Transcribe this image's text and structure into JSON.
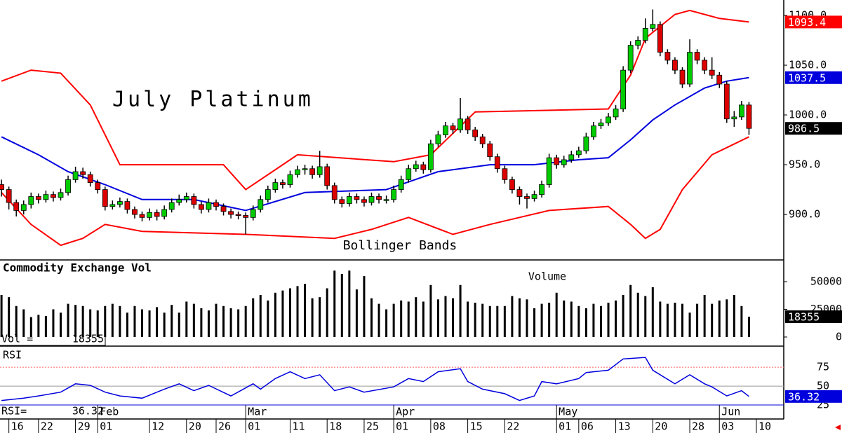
{
  "chart_data": {
    "type": "candlestick",
    "title": "July Platinum",
    "subtitle": "Bollinger Bands",
    "volume_title": "Commodity Exchange Vol",
    "volume_legend": "Volume",
    "volume_label": "Vol =",
    "rsi_title": "RSI",
    "rsi_label": "RSI=",
    "up_color": "#00cc00",
    "down_color": "#dd0000",
    "xlim": [
      -0.2,
      105.7
    ],
    "xticks": [
      {
        "value": 1,
        "label": "16"
      },
      {
        "value": 5,
        "label": "22"
      },
      {
        "value": 10,
        "label": "29"
      },
      {
        "value": 13,
        "label": "01"
      },
      {
        "value": 20,
        "label": "12"
      },
      {
        "value": 25,
        "label": "20"
      },
      {
        "value": 29,
        "label": "26"
      },
      {
        "value": 33,
        "label": "01"
      },
      {
        "value": 39,
        "label": "11"
      },
      {
        "value": 44,
        "label": "18"
      },
      {
        "value": 49,
        "label": "25"
      },
      {
        "value": 53,
        "label": "01"
      },
      {
        "value": 58,
        "label": "08"
      },
      {
        "value": 63,
        "label": "15"
      },
      {
        "value": 68,
        "label": "22"
      },
      {
        "value": 75,
        "label": "01"
      },
      {
        "value": 78,
        "label": "06"
      },
      {
        "value": 83,
        "label": "13"
      },
      {
        "value": 88,
        "label": "20"
      },
      {
        "value": 93,
        "label": "28"
      },
      {
        "value": 97,
        "label": "03"
      },
      {
        "value": 102,
        "label": "10"
      }
    ],
    "month_ticks": [
      {
        "value": 13,
        "label": "Feb"
      },
      {
        "value": 33,
        "label": "Mar"
      },
      {
        "value": 53,
        "label": "Apr"
      },
      {
        "value": 75,
        "label": "May"
      },
      {
        "value": 97,
        "label": "Jun"
      }
    ],
    "ylim": [
      855,
      1115.5
    ],
    "yticks": [
      {
        "value": 900,
        "label": "900.0"
      },
      {
        "value": 950,
        "label": "950.0"
      },
      {
        "value": 1000,
        "label": "1000.0"
      },
      {
        "value": 1050,
        "label": "1050.0"
      },
      {
        "value": 1100,
        "label": "1100.0"
      }
    ],
    "ohlc": [
      [
        930,
        935,
        918,
        925
      ],
      [
        925,
        928,
        905,
        912
      ],
      [
        912,
        915,
        898,
        904
      ],
      [
        904,
        914,
        900,
        910
      ],
      [
        910,
        922,
        906,
        918
      ],
      [
        918,
        921,
        911,
        915
      ],
      [
        915,
        924,
        912,
        920
      ],
      [
        920,
        923,
        913,
        917
      ],
      [
        917,
        926,
        914,
        922
      ],
      [
        922,
        939,
        919,
        935
      ],
      [
        935,
        948,
        932,
        943
      ],
      [
        943,
        947,
        936,
        940
      ],
      [
        940,
        943,
        928,
        932
      ],
      [
        932,
        935,
        921,
        925
      ],
      [
        925,
        928,
        904,
        908
      ],
      [
        908,
        914,
        905,
        910
      ],
      [
        910,
        917,
        907,
        913
      ],
      [
        913,
        916,
        901,
        905
      ],
      [
        905,
        908,
        896,
        900
      ],
      [
        900,
        903,
        893,
        897
      ],
      [
        897,
        906,
        894,
        902
      ],
      [
        902,
        905,
        894,
        898
      ],
      [
        898,
        909,
        895,
        905
      ],
      [
        905,
        916,
        902,
        912
      ],
      [
        912,
        920,
        909,
        915
      ],
      [
        915,
        922,
        912,
        918
      ],
      [
        918,
        921,
        906,
        910
      ],
      [
        910,
        913,
        901,
        905
      ],
      [
        905,
        916,
        902,
        912
      ],
      [
        912,
        915,
        904,
        908
      ],
      [
        908,
        911,
        899,
        903
      ],
      [
        903,
        906,
        896,
        900
      ],
      [
        900,
        903,
        895,
        899
      ],
      [
        899,
        902,
        880,
        897
      ],
      [
        897,
        909,
        894,
        905
      ],
      [
        905,
        919,
        902,
        915
      ],
      [
        915,
        929,
        912,
        925
      ],
      [
        925,
        936,
        922,
        932
      ],
      [
        932,
        935,
        926,
        930
      ],
      [
        930,
        944,
        927,
        940
      ],
      [
        940,
        949,
        937,
        945
      ],
      [
        945,
        950,
        940,
        946
      ],
      [
        946,
        949,
        936,
        940
      ],
      [
        940,
        964,
        937,
        948
      ],
      [
        948,
        951,
        925,
        929
      ],
      [
        929,
        932,
        911,
        915
      ],
      [
        915,
        918,
        907,
        911
      ],
      [
        911,
        922,
        908,
        918
      ],
      [
        918,
        921,
        911,
        915
      ],
      [
        915,
        918,
        908,
        912
      ],
      [
        912,
        922,
        909,
        918
      ],
      [
        918,
        921,
        911,
        915
      ],
      [
        915,
        919,
        911,
        915
      ],
      [
        915,
        929,
        912,
        925
      ],
      [
        925,
        939,
        922,
        935
      ],
      [
        935,
        950,
        932,
        946
      ],
      [
        946,
        954,
        943,
        950
      ],
      [
        950,
        953,
        941,
        945
      ],
      [
        945,
        975,
        942,
        971
      ],
      [
        971,
        984,
        968,
        980
      ],
      [
        980,
        993,
        977,
        989
      ],
      [
        989,
        992,
        981,
        985
      ],
      [
        985,
        1017,
        982,
        996
      ],
      [
        996,
        999,
        981,
        985
      ],
      [
        985,
        988,
        974,
        978
      ],
      [
        978,
        981,
        967,
        971
      ],
      [
        971,
        974,
        954,
        958
      ],
      [
        958,
        961,
        942,
        946
      ],
      [
        946,
        949,
        931,
        935
      ],
      [
        935,
        938,
        921,
        925
      ],
      [
        925,
        928,
        910,
        918
      ],
      [
        918,
        921,
        906,
        916
      ],
      [
        916,
        924,
        913,
        920
      ],
      [
        920,
        934,
        917,
        930
      ],
      [
        930,
        961,
        927,
        957
      ],
      [
        957,
        960,
        946,
        950
      ],
      [
        950,
        959,
        947,
        955
      ],
      [
        955,
        964,
        952,
        960
      ],
      [
        960,
        968,
        957,
        964
      ],
      [
        964,
        982,
        961,
        978
      ],
      [
        978,
        993,
        975,
        989
      ],
      [
        989,
        996,
        986,
        992
      ],
      [
        992,
        1002,
        989,
        998
      ],
      [
        998,
        1010,
        995,
        1006
      ],
      [
        1006,
        1049,
        1003,
        1045
      ],
      [
        1045,
        1074,
        1042,
        1070
      ],
      [
        1070,
        1079,
        1066,
        1075
      ],
      [
        1075,
        1097,
        1072,
        1087
      ],
      [
        1087,
        1106,
        1084,
        1091
      ],
      [
        1091,
        1094,
        1059,
        1063
      ],
      [
        1063,
        1066,
        1051,
        1055
      ],
      [
        1055,
        1058,
        1041,
        1045
      ],
      [
        1045,
        1048,
        1027,
        1031
      ],
      [
        1031,
        1076,
        1028,
        1063
      ],
      [
        1063,
        1066,
        1051,
        1055
      ],
      [
        1055,
        1058,
        1041,
        1045
      ],
      [
        1045,
        1058,
        1036,
        1040
      ],
      [
        1040,
        1043,
        1027,
        1031
      ],
      [
        1031,
        1034,
        992,
        996
      ],
      [
        996,
        1004,
        988,
        998
      ],
      [
        998,
        1014,
        995,
        1010
      ],
      [
        1010,
        1013,
        980,
        986.5
      ]
    ],
    "bb_upper": {
      "color": "#ff0000",
      "x": [
        0,
        4,
        8,
        12,
        16,
        30,
        33,
        40,
        53,
        58,
        64,
        82,
        85,
        87,
        91,
        93,
        97,
        101
      ],
      "values": [
        1034,
        1045,
        1042,
        1010,
        950,
        950,
        925,
        960,
        953,
        960,
        1003,
        1006,
        1040,
        1077,
        1101,
        1105,
        1097,
        1093.4
      ]
    },
    "bb_mid": {
      "color": "#0000dd",
      "x": [
        0,
        5,
        9,
        14,
        19,
        26,
        33,
        41,
        52,
        59,
        66,
        72,
        78,
        82,
        85,
        88,
        91,
        95,
        98,
        101
      ],
      "values": [
        978,
        960,
        943,
        930,
        915,
        915,
        904,
        922,
        925,
        943,
        950,
        950,
        955,
        957,
        975,
        995,
        1010,
        1027,
        1034,
        1037.5
      ]
    },
    "bb_lower": {
      "color": "#ff0000",
      "x": [
        0,
        4,
        8,
        11,
        14,
        19,
        33,
        45,
        50,
        55,
        61,
        66,
        74,
        82,
        85,
        87,
        89,
        92,
        96,
        101
      ],
      "values": [
        922,
        890,
        869,
        876,
        890,
        883,
        880,
        876,
        885,
        897,
        880,
        890,
        904,
        908,
        890,
        876,
        885,
        925,
        960,
        978
      ]
    },
    "volume_ylim": [
      0,
      69000
    ],
    "volume_yticks": [
      0,
      25000,
      50000
    ],
    "volume": [
      38000,
      36000,
      28000,
      25000,
      18000,
      20000,
      19000,
      25000,
      22000,
      30000,
      29000,
      28000,
      25000,
      24000,
      28000,
      30000,
      28000,
      22000,
      28000,
      25000,
      24000,
      27000,
      22000,
      29000,
      22000,
      32000,
      30000,
      26000,
      24000,
      30000,
      28000,
      26000,
      25000,
      28000,
      35000,
      38000,
      33000,
      40000,
      42000,
      44000,
      46000,
      48000,
      35000,
      36000,
      44000,
      60000,
      57000,
      60000,
      43000,
      55000,
      35000,
      30000,
      25000,
      30000,
      33000,
      32000,
      36000,
      32000,
      47000,
      34000,
      37000,
      35000,
      47000,
      32000,
      31000,
      30000,
      28000,
      28000,
      28000,
      37000,
      35000,
      34000,
      26000,
      30000,
      31000,
      40000,
      33000,
      32000,
      28000,
      26000,
      30000,
      28000,
      31000,
      33000,
      38000,
      47000,
      40000,
      37000,
      45000,
      32000,
      30000,
      31000,
      30000,
      22000,
      30000,
      38000,
      30000,
      33000,
      34000,
      38000,
      28000,
      18355
    ],
    "rsi_ylim": [
      6.5,
      102
    ],
    "rsi_yticks": [
      25,
      50,
      75
    ],
    "rsi": {
      "color": "#0000dd",
      "x": [
        0,
        3,
        5,
        8,
        10,
        12,
        14,
        16,
        19,
        22,
        24,
        26,
        28,
        31,
        34,
        35,
        37,
        39,
        41,
        43,
        45,
        47,
        49,
        53,
        55,
        57,
        59,
        62,
        63,
        65,
        68,
        70,
        72,
        73,
        75,
        78,
        79,
        82,
        84,
        87,
        88,
        91,
        93,
        95,
        96,
        98,
        100,
        101
      ],
      "values": [
        31,
        34,
        37,
        42,
        53,
        51,
        42,
        37,
        34,
        46,
        53,
        44,
        51,
        37,
        53,
        46,
        60,
        69,
        60,
        65,
        44,
        49,
        42,
        49,
        60,
        56,
        69,
        73,
        56,
        46,
        40,
        31,
        37,
        56,
        53,
        60,
        68,
        71,
        86,
        88,
        71,
        53,
        65,
        53,
        49,
        37,
        44,
        36.32
      ]
    }
  }
}
